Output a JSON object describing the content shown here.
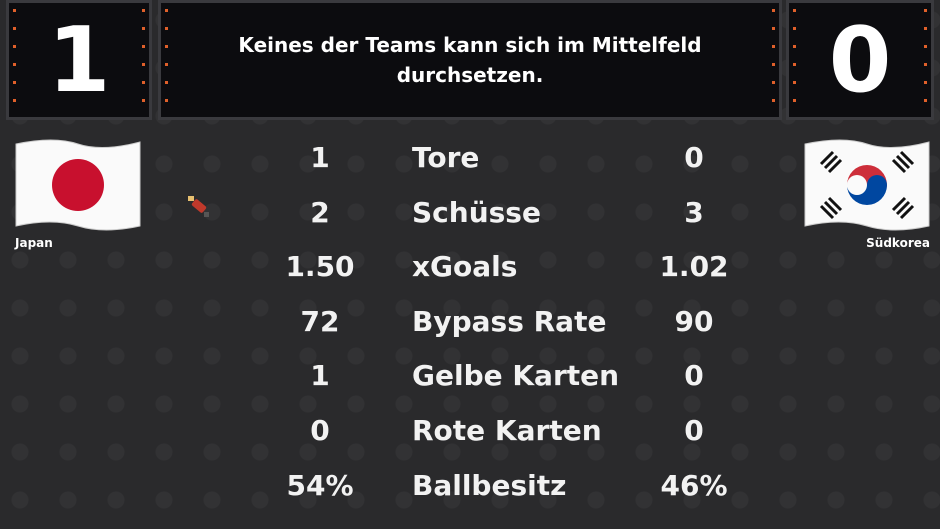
{
  "scoreboard": {
    "home_score": "1",
    "away_score": "0",
    "message": "Keines der Teams kann sich im Mittelfeld durchsetzen."
  },
  "teams": {
    "home": "Japan",
    "away": "Südkorea"
  },
  "stats": [
    {
      "label": "Tore",
      "home": "1",
      "away": "0"
    },
    {
      "label": "Schüsse",
      "home": "2",
      "away": "3"
    },
    {
      "label": "xGoals",
      "home": "1.50",
      "away": "1.02"
    },
    {
      "label": "Bypass Rate",
      "home": "72",
      "away": "90"
    },
    {
      "label": "Gelbe Karten",
      "home": "1",
      "away": "0"
    },
    {
      "label": "Rote Karten",
      "home": "0",
      "away": "0"
    },
    {
      "label": "Ballbesitz",
      "home": "54%",
      "away": "46%"
    }
  ]
}
